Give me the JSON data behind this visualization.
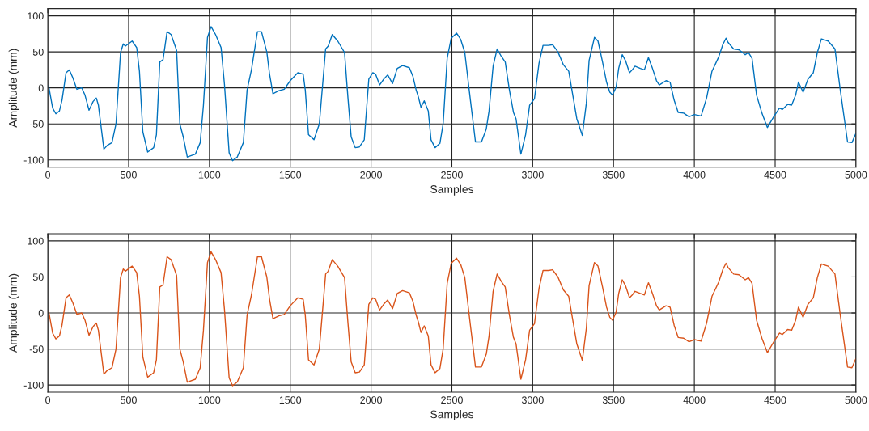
{
  "chart_data": [
    {
      "type": "line",
      "xlabel": "Samples",
      "ylabel": "Amplitude (mm)",
      "xlim": [
        0,
        5000
      ],
      "ylim": [
        -110,
        110
      ],
      "xticks": [
        0,
        500,
        1000,
        1500,
        2000,
        2500,
        3000,
        3500,
        4000,
        4500,
        5000
      ],
      "yticks": [
        -100,
        -50,
        0,
        50,
        100
      ],
      "grid": true,
      "legend": false,
      "marker": "none",
      "line_style": "solid",
      "series": [
        {
          "color": "#0072bd",
          "x": [
            5,
            30,
            50,
            72,
            88,
            113,
            133,
            155,
            180,
            210,
            230,
            255,
            280,
            300,
            313,
            347,
            367,
            397,
            422,
            450,
            467,
            480,
            522,
            550,
            567,
            588,
            618,
            655,
            672,
            693,
            713,
            738,
            763,
            797,
            817,
            838,
            863,
            913,
            943,
            963,
            988,
            1010,
            1038,
            1072,
            1093,
            1122,
            1143,
            1172,
            1210,
            1233,
            1260,
            1297,
            1322,
            1355,
            1372,
            1393,
            1430,
            1463,
            1500,
            1547,
            1580,
            1593,
            1613,
            1647,
            1680,
            1719,
            1735,
            1760,
            1794,
            1836,
            1857,
            1877,
            1902,
            1928,
            1958,
            1986,
            2011,
            2028,
            2053,
            2078,
            2103,
            2133,
            2162,
            2195,
            2237,
            2259,
            2279,
            2292,
            2309,
            2329,
            2354,
            2371,
            2396,
            2426,
            2446,
            2471,
            2496,
            2529,
            2555,
            2580,
            2613,
            2646,
            2683,
            2713,
            2730,
            2755,
            2780,
            2805,
            2830,
            2856,
            2881,
            2897,
            2927,
            2956,
            2981,
            3011,
            3039,
            3064,
            3098,
            3123,
            3156,
            3190,
            3223,
            3248,
            3273,
            3307,
            3332,
            3349,
            3382,
            3404,
            3432,
            3457,
            3477,
            3494,
            3516,
            3532,
            3554,
            3574,
            3599,
            3616,
            3633,
            3666,
            3691,
            3716,
            3741,
            3766,
            3783,
            3825,
            3850,
            3875,
            3900,
            3934,
            3967,
            4000,
            4042,
            4076,
            4109,
            4151,
            4176,
            4196,
            4209,
            4243,
            4276,
            4315,
            4335,
            4357,
            4385,
            4418,
            4452,
            4494,
            4527,
            4544,
            4577,
            4602,
            4627,
            4644,
            4673,
            4703,
            4736,
            4761,
            4786,
            4828,
            4870,
            4903,
            4928,
            4948,
            4975,
            5000
          ],
          "values": [
            3,
            -28,
            -36,
            -32,
            -17,
            21,
            25,
            14,
            -2,
            0,
            -10,
            -31,
            -19,
            -14,
            -24,
            -85,
            -80,
            -76,
            -50,
            49,
            61,
            58,
            65,
            56,
            23,
            -61,
            -89,
            -83,
            -65,
            36,
            39,
            78,
            74,
            52,
            -50,
            -68,
            -96,
            -92,
            -76,
            -24,
            70,
            85,
            74,
            56,
            5,
            -90,
            -101,
            -96,
            -76,
            -3,
            25,
            78,
            78,
            50,
            19,
            -8,
            -4,
            -2,
            10,
            21,
            19,
            -3,
            -65,
            -72,
            -50,
            54,
            58,
            74,
            65,
            49,
            -14,
            -68,
            -83,
            -82,
            -72,
            12,
            21,
            19,
            4,
            12,
            18,
            6,
            27,
            31,
            28,
            16,
            -3,
            -12,
            -27,
            -18,
            -32,
            -72,
            -83,
            -77,
            -50,
            41,
            69,
            76,
            67,
            49,
            -14,
            -75,
            -75,
            -57,
            -32,
            30,
            54,
            44,
            36,
            -3,
            -34,
            -43,
            -92,
            -65,
            -24,
            -15,
            34,
            59,
            59,
            60,
            50,
            32,
            23,
            -10,
            -43,
            -66,
            -21,
            38,
            70,
            65,
            36,
            8,
            -6,
            -10,
            1,
            27,
            46,
            38,
            21,
            25,
            30,
            27,
            25,
            42,
            27,
            10,
            4,
            10,
            8,
            -17,
            -34,
            -35,
            -40,
            -37,
            -39,
            -14,
            23,
            43,
            60,
            69,
            63,
            54,
            53,
            46,
            49,
            41,
            -10,
            -35,
            -55,
            -39,
            -28,
            -30,
            -23,
            -24,
            -10,
            8,
            -6,
            12,
            21,
            49,
            68,
            65,
            54,
            -3,
            -43,
            -75,
            -76,
            -63
          ]
        }
      ]
    },
    {
      "type": "line",
      "xlabel": "Samples",
      "ylabel": "Amplitude (mm)",
      "xlim": [
        0,
        5000
      ],
      "ylim": [
        -110,
        110
      ],
      "xticks": [
        0,
        500,
        1000,
        1500,
        2000,
        2500,
        3000,
        3500,
        4000,
        4500,
        5000
      ],
      "yticks": [
        -100,
        -50,
        0,
        50,
        100
      ],
      "grid": true,
      "legend": false,
      "marker": "none",
      "line_style": "solid",
      "series": [
        {
          "color": "#d95319",
          "x": [
            5,
            30,
            50,
            72,
            88,
            113,
            133,
            155,
            180,
            210,
            230,
            255,
            280,
            300,
            313,
            347,
            367,
            397,
            422,
            450,
            467,
            480,
            522,
            550,
            567,
            588,
            618,
            655,
            672,
            693,
            713,
            738,
            763,
            797,
            817,
            838,
            863,
            913,
            943,
            963,
            988,
            1010,
            1038,
            1072,
            1093,
            1122,
            1143,
            1172,
            1210,
            1233,
            1260,
            1297,
            1322,
            1355,
            1372,
            1393,
            1430,
            1463,
            1500,
            1547,
            1580,
            1593,
            1613,
            1647,
            1680,
            1719,
            1735,
            1760,
            1794,
            1836,
            1857,
            1877,
            1902,
            1928,
            1958,
            1986,
            2011,
            2028,
            2053,
            2078,
            2103,
            2133,
            2162,
            2195,
            2237,
            2259,
            2279,
            2292,
            2309,
            2329,
            2354,
            2371,
            2396,
            2426,
            2446,
            2471,
            2496,
            2529,
            2555,
            2580,
            2613,
            2646,
            2683,
            2713,
            2730,
            2755,
            2780,
            2805,
            2830,
            2856,
            2881,
            2897,
            2927,
            2956,
            2981,
            3011,
            3039,
            3064,
            3098,
            3123,
            3156,
            3190,
            3223,
            3248,
            3273,
            3307,
            3332,
            3349,
            3382,
            3404,
            3432,
            3457,
            3477,
            3494,
            3516,
            3532,
            3554,
            3574,
            3599,
            3616,
            3633,
            3666,
            3691,
            3716,
            3741,
            3766,
            3783,
            3825,
            3850,
            3875,
            3900,
            3934,
            3967,
            4000,
            4042,
            4076,
            4109,
            4151,
            4176,
            4196,
            4209,
            4243,
            4276,
            4315,
            4335,
            4357,
            4385,
            4418,
            4452,
            4494,
            4527,
            4544,
            4577,
            4602,
            4627,
            4644,
            4673,
            4703,
            4736,
            4761,
            4786,
            4828,
            4870,
            4903,
            4928,
            4948,
            4975,
            5000
          ],
          "values": [
            3,
            -28,
            -36,
            -32,
            -17,
            21,
            25,
            14,
            -2,
            0,
            -10,
            -31,
            -19,
            -14,
            -24,
            -85,
            -80,
            -76,
            -50,
            49,
            61,
            58,
            65,
            56,
            23,
            -61,
            -89,
            -83,
            -65,
            36,
            39,
            78,
            74,
            52,
            -50,
            -68,
            -96,
            -92,
            -76,
            -24,
            70,
            85,
            74,
            56,
            5,
            -90,
            -101,
            -96,
            -76,
            -3,
            25,
            78,
            78,
            50,
            19,
            -8,
            -4,
            -2,
            10,
            21,
            19,
            -3,
            -65,
            -72,
            -50,
            54,
            58,
            74,
            65,
            49,
            -14,
            -68,
            -83,
            -82,
            -72,
            12,
            21,
            19,
            4,
            12,
            18,
            6,
            27,
            31,
            28,
            16,
            -3,
            -12,
            -27,
            -18,
            -32,
            -72,
            -83,
            -77,
            -50,
            41,
            69,
            76,
            67,
            49,
            -14,
            -75,
            -75,
            -57,
            -32,
            30,
            54,
            44,
            36,
            -3,
            -34,
            -43,
            -92,
            -65,
            -24,
            -15,
            34,
            59,
            59,
            60,
            50,
            32,
            23,
            -10,
            -43,
            -66,
            -21,
            38,
            70,
            65,
            36,
            8,
            -6,
            -10,
            1,
            27,
            46,
            38,
            21,
            25,
            30,
            27,
            25,
            42,
            27,
            10,
            4,
            10,
            8,
            -17,
            -34,
            -35,
            -40,
            -37,
            -39,
            -14,
            23,
            43,
            60,
            69,
            63,
            54,
            53,
            46,
            49,
            41,
            -10,
            -35,
            -55,
            -39,
            -28,
            -30,
            -23,
            -24,
            -10,
            8,
            -6,
            12,
            21,
            49,
            68,
            65,
            54,
            -3,
            -43,
            -75,
            -76,
            -63
          ]
        }
      ]
    }
  ]
}
